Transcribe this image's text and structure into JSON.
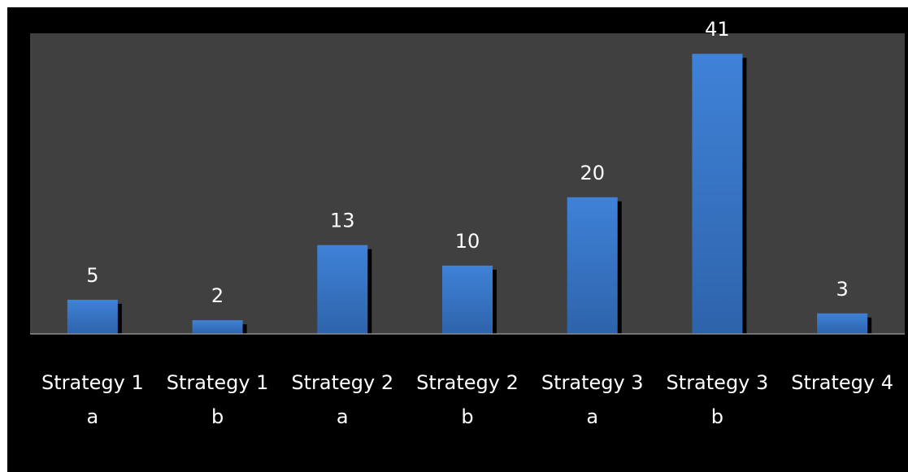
{
  "chart_data": {
    "type": "bar",
    "title": "",
    "xlabel": "",
    "ylabel": "",
    "ylim": [
      0,
      44
    ],
    "grid": false,
    "legend": false,
    "categories": [
      [
        "Strategy 1",
        "a"
      ],
      [
        "Strategy 1",
        "b"
      ],
      [
        "Strategy 2",
        "a"
      ],
      [
        "Strategy 2",
        "b"
      ],
      [
        "Strategy 3",
        "a"
      ],
      [
        "Strategy 3",
        "b"
      ],
      [
        "Strategy 4",
        ""
      ]
    ],
    "values": [
      5,
      2,
      13,
      10,
      20,
      41,
      3
    ],
    "data_labels": [
      "5",
      "2",
      "13",
      "10",
      "20",
      "41",
      "3"
    ]
  },
  "colors": {
    "page_background": "#ffffff",
    "frame_background": "#000000",
    "plot_background": "#404040",
    "bar_top": "#3f82d8",
    "bar_bottom": "#2e63ab",
    "bar_shadow": "#000000",
    "baseline": "#8c8c8c",
    "text": "#ffffff"
  }
}
